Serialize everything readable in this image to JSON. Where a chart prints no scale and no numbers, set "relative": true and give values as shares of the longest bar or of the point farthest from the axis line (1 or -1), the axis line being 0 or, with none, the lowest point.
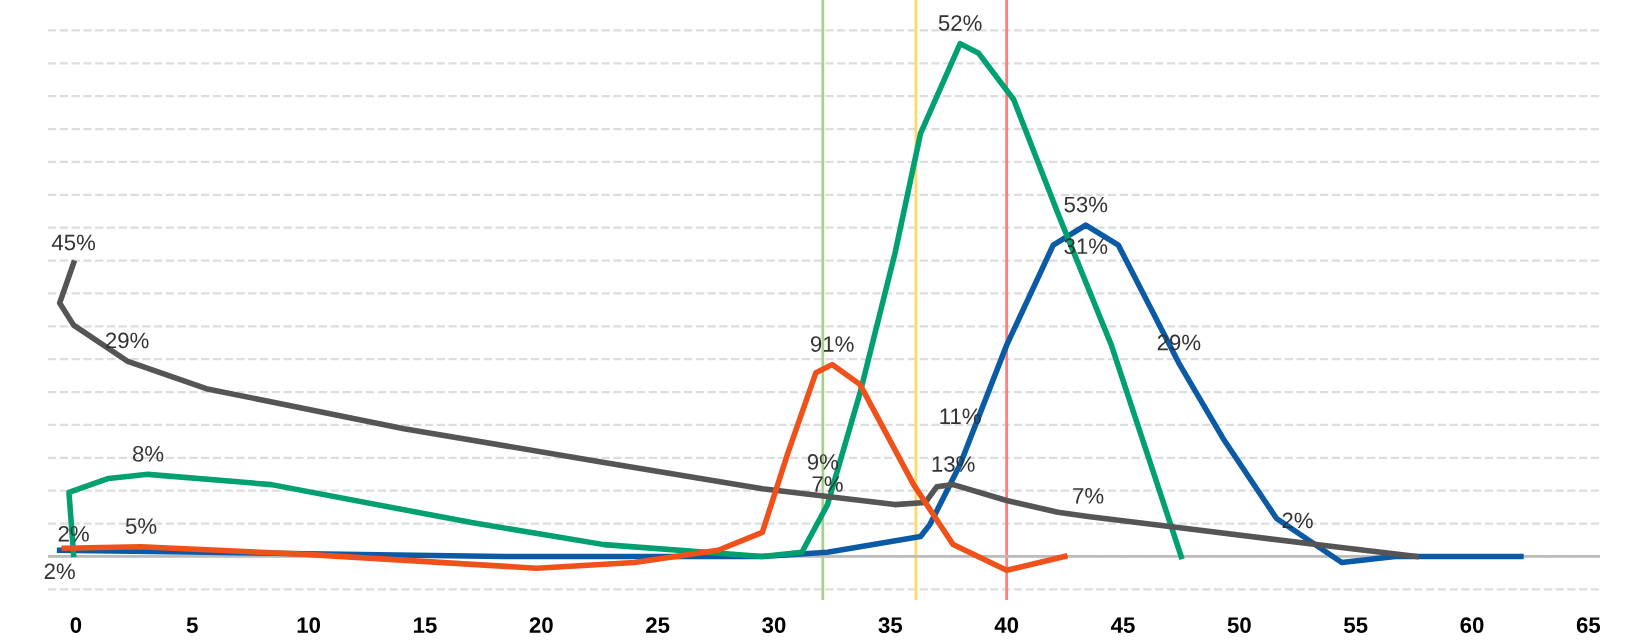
{
  "chart_data": {
    "type": "line",
    "relative": true,
    "grid": "y",
    "marker": "none",
    "line_style": "solid",
    "xlim": [
      -1.2,
      65.5
    ],
    "xticks": [
      0,
      5,
      10,
      15,
      20,
      25,
      30,
      35,
      40,
      45,
      50,
      55,
      60,
      65
    ],
    "series": [
      {
        "color": "#0a5aa6",
        "x": [
          -0.7,
          5.6,
          18.4,
          29.5,
          32.3,
          36.3,
          36.7,
          38.0,
          40.0,
          42.0,
          43.4,
          44.8,
          47.4,
          49.3,
          51.6,
          54.4,
          56.7,
          62.1
        ],
        "values": [
          0.012,
          0.008,
          0.0,
          0.0,
          0.008,
          0.039,
          0.062,
          0.179,
          0.412,
          0.607,
          0.646,
          0.607,
          0.377,
          0.23,
          0.074,
          -0.012,
          0.0,
          0.0
        ]
      },
      {
        "color": "#00a070",
        "x": [
          -0.1,
          -0.3,
          1.4,
          3.1,
          8.4,
          17.0,
          22.7,
          29.5,
          31.2,
          32.3,
          33.7,
          35.2,
          36.3,
          38.0,
          38.8,
          40.3,
          42.2,
          44.5,
          47.5
        ],
        "values": [
          0.004,
          0.125,
          0.152,
          0.16,
          0.14,
          0.066,
          0.023,
          0.0,
          0.008,
          0.101,
          0.319,
          0.591,
          0.825,
          1.0,
          0.981,
          0.891,
          0.669,
          0.412,
          0.0
        ]
      },
      {
        "color": "#555555",
        "x": [
          -0.1,
          -0.7,
          -0.1,
          2.2,
          5.6,
          14.1,
          22.7,
          29.5,
          35.2,
          36.5,
          37.0,
          37.7,
          40.0,
          42.2,
          43.5,
          47.1,
          53.3,
          57.6
        ],
        "values": [
          0.572,
          0.494,
          0.451,
          0.381,
          0.327,
          0.249,
          0.183,
          0.132,
          0.101,
          0.105,
          0.136,
          0.14,
          0.109,
          0.086,
          0.078,
          0.058,
          0.023,
          0.0
        ]
      },
      {
        "color": "#f0501a",
        "x": [
          -0.5,
          2.8,
          9.9,
          19.8,
          24.0,
          27.6,
          29.5,
          30.6,
          31.8,
          32.5,
          33.7,
          36.0,
          37.7,
          40.0,
          42.5
        ],
        "values": [
          0.016,
          0.019,
          0.004,
          -0.023,
          -0.012,
          0.012,
          0.047,
          0.202,
          0.358,
          0.374,
          0.335,
          0.14,
          0.023,
          -0.027,
          0.0
        ]
      }
    ],
    "ref_lines": [
      {
        "axis": "x",
        "value": 32.1,
        "color": "#a8d08d"
      },
      {
        "axis": "x",
        "value": 36.1,
        "color": "#ffd966"
      },
      {
        "axis": "x",
        "value": 40.0,
        "color": "#ff7f7f"
      }
    ],
    "annotations": [
      {
        "text": "45%",
        "x": -0.1,
        "y": 0.572
      },
      {
        "text": "29%",
        "x": 2.2,
        "y": 0.381
      },
      {
        "text": "9%",
        "x": 32.1,
        "y": 0.144
      },
      {
        "text": "13%",
        "x": 37.7,
        "y": 0.14
      },
      {
        "text": "7%",
        "x": 43.5,
        "y": 0.078
      },
      {
        "text": "2%",
        "x": -0.1,
        "y": 0.004
      },
      {
        "text": "8%",
        "x": 3.1,
        "y": 0.16
      },
      {
        "text": "7%",
        "x": 32.3,
        "y": 0.101
      },
      {
        "text": "52%",
        "x": 38.0,
        "y": 1.0
      },
      {
        "text": "2%",
        "x": -0.7,
        "y": 0.012
      },
      {
        "text": "11%",
        "x": 38.0,
        "y": 0.179
      },
      {
        "text": "53%",
        "x": 43.4,
        "y": 0.646
      },
      {
        "text": "31%",
        "x": 43.4,
        "y": 0.646
      },
      {
        "text": "29%",
        "x": 47.4,
        "y": 0.377
      },
      {
        "text": "2%",
        "x": 52.5,
        "y": 0.03
      },
      {
        "text": "5%",
        "x": 2.8,
        "y": 0.019
      },
      {
        "text": "91%",
        "x": 32.5,
        "y": 0.374
      }
    ]
  }
}
